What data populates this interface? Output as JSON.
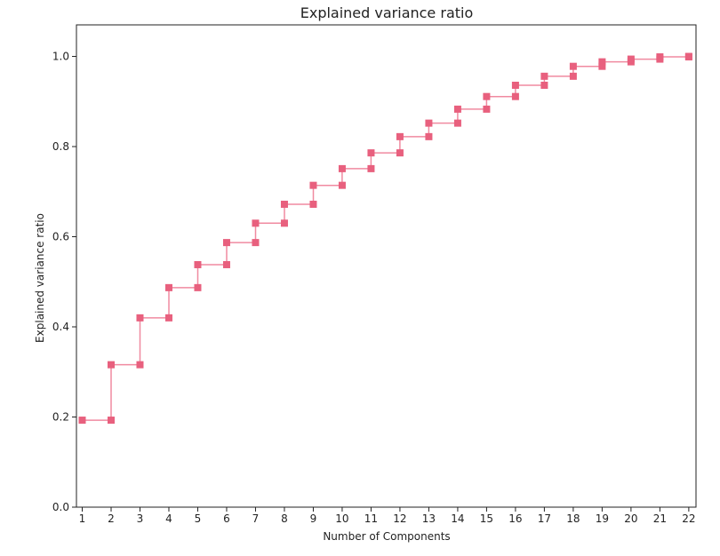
{
  "chart_data": {
    "type": "line",
    "style": "step",
    "title": "Explained variance ratio",
    "xlabel": "Number of Components",
    "ylabel": "Explained variance ratio",
    "x": [
      1,
      2,
      3,
      4,
      5,
      6,
      7,
      8,
      9,
      10,
      11,
      12,
      13,
      14,
      15,
      16,
      17,
      18,
      19,
      20,
      21,
      22
    ],
    "series": [
      {
        "values": [
          0.193,
          0.316,
          0.42,
          0.487,
          0.538,
          0.587,
          0.63,
          0.672,
          0.714,
          0.751,
          0.786,
          0.822,
          0.852,
          0.883,
          0.911,
          0.936,
          0.956,
          0.978,
          0.988,
          0.994,
          0.999,
          1.0
        ]
      }
    ],
    "xlim": [
      0.8,
      22.25
    ],
    "ylim": [
      0.0,
      1.07
    ],
    "xticks": [
      "1",
      "2",
      "3",
      "4",
      "5",
      "6",
      "7",
      "8",
      "9",
      "10",
      "11",
      "12",
      "13",
      "14",
      "15",
      "16",
      "17",
      "18",
      "19",
      "20",
      "21",
      "22"
    ],
    "yticks": [
      "0.0",
      "0.2",
      "0.4",
      "0.6",
      "0.8",
      "1.0"
    ],
    "ytick_values": [
      0.0,
      0.2,
      0.4,
      0.6,
      0.8,
      1.0
    ],
    "marker": "square",
    "grid": false,
    "colors": {
      "line": "#f08aa0",
      "marker": "#e8607e",
      "axis": "#222222"
    }
  }
}
